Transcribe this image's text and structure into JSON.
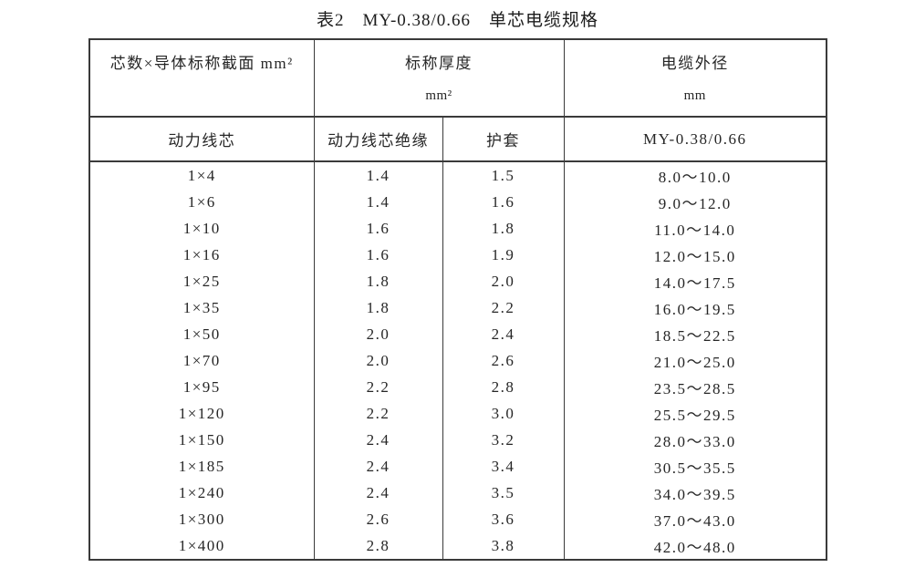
{
  "title": "表2　MY-0.38/0.66　单芯电缆规格",
  "table": {
    "header_row1": [
      {
        "title": "芯数×导体标称截面 mm²",
        "unit": ""
      },
      {
        "title": "标称厚度",
        "unit": "mm²"
      },
      {
        "title": "电缆外径",
        "unit": "mm"
      }
    ],
    "header_row2": [
      "动力线芯",
      "动力线芯绝缘",
      "护套",
      "MY-0.38/0.66"
    ],
    "rows": [
      [
        "1×4",
        "1.4",
        "1.5",
        "8.0～10.0"
      ],
      [
        "1×6",
        "1.4",
        "1.6",
        "9.0～12.0"
      ],
      [
        "1×10",
        "1.6",
        "1.8",
        "11.0～14.0"
      ],
      [
        "1×16",
        "1.6",
        "1.9",
        "12.0～15.0"
      ],
      [
        "1×25",
        "1.8",
        "2.0",
        "14.0～17.5"
      ],
      [
        "1×35",
        "1.8",
        "2.2",
        "16.0～19.5"
      ],
      [
        "1×50",
        "2.0",
        "2.4",
        "18.5～22.5"
      ],
      [
        "1×70",
        "2.0",
        "2.6",
        "21.0～25.0"
      ],
      [
        "1×95",
        "2.2",
        "2.8",
        "23.5～28.5"
      ],
      [
        "1×120",
        "2.2",
        "3.0",
        "25.5～29.5"
      ],
      [
        "1×150",
        "2.4",
        "3.2",
        "28.0～33.0"
      ],
      [
        "1×185",
        "2.4",
        "3.4",
        "30.5～35.5"
      ],
      [
        "1×240",
        "2.4",
        "3.5",
        "34.0～39.5"
      ],
      [
        "1×300",
        "2.6",
        "3.6",
        "37.0～43.0"
      ],
      [
        "1×400",
        "2.8",
        "3.8",
        "42.0～48.0"
      ]
    ],
    "border_color": "#3a3a3a",
    "text_color": "#262626"
  }
}
